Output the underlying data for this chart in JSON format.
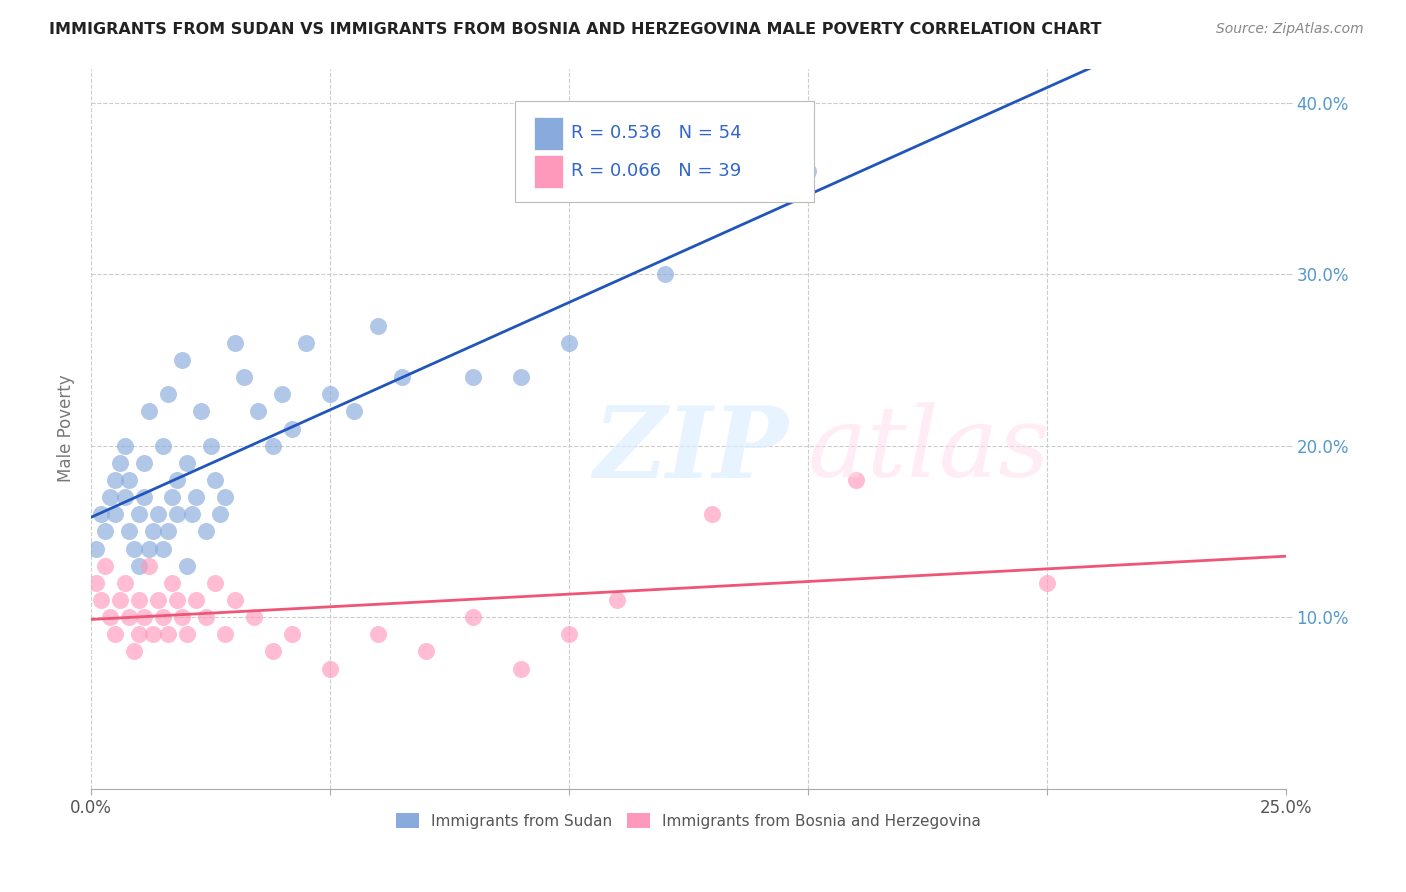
{
  "title": "IMMIGRANTS FROM SUDAN VS IMMIGRANTS FROM BOSNIA AND HERZEGOVINA MALE POVERTY CORRELATION CHART",
  "source": "Source: ZipAtlas.com",
  "ylabel": "Male Poverty",
  "legend_label_1": "Immigrants from Sudan",
  "legend_label_2": "Immigrants from Bosnia and Herzegovina",
  "R1": 0.536,
  "N1": 54,
  "R2": 0.066,
  "N2": 39,
  "color1": "#88AADD",
  "color2": "#FF99BB",
  "trendline1_color": "#2255BB",
  "trendline2_color": "#EE5577",
  "xlim": [
    0.0,
    0.25
  ],
  "ylim": [
    0.0,
    0.42
  ],
  "xtick_vals": [
    0.0,
    0.05,
    0.1,
    0.15,
    0.2,
    0.25
  ],
  "xtick_labels": [
    "0.0%",
    "",
    "",
    "",
    "",
    "25.0%"
  ],
  "ytick_vals": [
    0.1,
    0.2,
    0.3,
    0.4
  ],
  "ytick_labels": [
    "10.0%",
    "20.0%",
    "30.0%",
    "40.0%"
  ],
  "right_ytick_color": "#5599CC",
  "sudan_x": [
    0.001,
    0.002,
    0.003,
    0.004,
    0.005,
    0.005,
    0.006,
    0.007,
    0.007,
    0.008,
    0.008,
    0.009,
    0.01,
    0.01,
    0.011,
    0.011,
    0.012,
    0.012,
    0.013,
    0.014,
    0.015,
    0.015,
    0.016,
    0.016,
    0.017,
    0.018,
    0.018,
    0.019,
    0.02,
    0.02,
    0.021,
    0.022,
    0.023,
    0.024,
    0.025,
    0.026,
    0.027,
    0.028,
    0.03,
    0.032,
    0.035,
    0.038,
    0.04,
    0.042,
    0.045,
    0.05,
    0.055,
    0.06,
    0.065,
    0.08,
    0.09,
    0.1,
    0.12,
    0.15
  ],
  "sudan_y": [
    0.14,
    0.16,
    0.15,
    0.17,
    0.16,
    0.18,
    0.19,
    0.17,
    0.2,
    0.15,
    0.18,
    0.14,
    0.16,
    0.13,
    0.17,
    0.19,
    0.14,
    0.22,
    0.15,
    0.16,
    0.14,
    0.2,
    0.15,
    0.23,
    0.17,
    0.16,
    0.18,
    0.25,
    0.13,
    0.19,
    0.16,
    0.17,
    0.22,
    0.15,
    0.2,
    0.18,
    0.16,
    0.17,
    0.26,
    0.24,
    0.22,
    0.2,
    0.23,
    0.21,
    0.26,
    0.23,
    0.22,
    0.27,
    0.24,
    0.24,
    0.24,
    0.26,
    0.3,
    0.36
  ],
  "bosnia_x": [
    0.001,
    0.002,
    0.003,
    0.004,
    0.005,
    0.006,
    0.007,
    0.008,
    0.009,
    0.01,
    0.01,
    0.011,
    0.012,
    0.013,
    0.014,
    0.015,
    0.016,
    0.017,
    0.018,
    0.019,
    0.02,
    0.022,
    0.024,
    0.026,
    0.028,
    0.03,
    0.034,
    0.038,
    0.042,
    0.05,
    0.06,
    0.07,
    0.08,
    0.09,
    0.1,
    0.11,
    0.13,
    0.16,
    0.2
  ],
  "bosnia_y": [
    0.12,
    0.11,
    0.13,
    0.1,
    0.09,
    0.11,
    0.12,
    0.1,
    0.08,
    0.09,
    0.11,
    0.1,
    0.13,
    0.09,
    0.11,
    0.1,
    0.09,
    0.12,
    0.11,
    0.1,
    0.09,
    0.11,
    0.1,
    0.12,
    0.09,
    0.11,
    0.1,
    0.08,
    0.09,
    0.07,
    0.09,
    0.08,
    0.1,
    0.07,
    0.09,
    0.11,
    0.16,
    0.18,
    0.12
  ]
}
